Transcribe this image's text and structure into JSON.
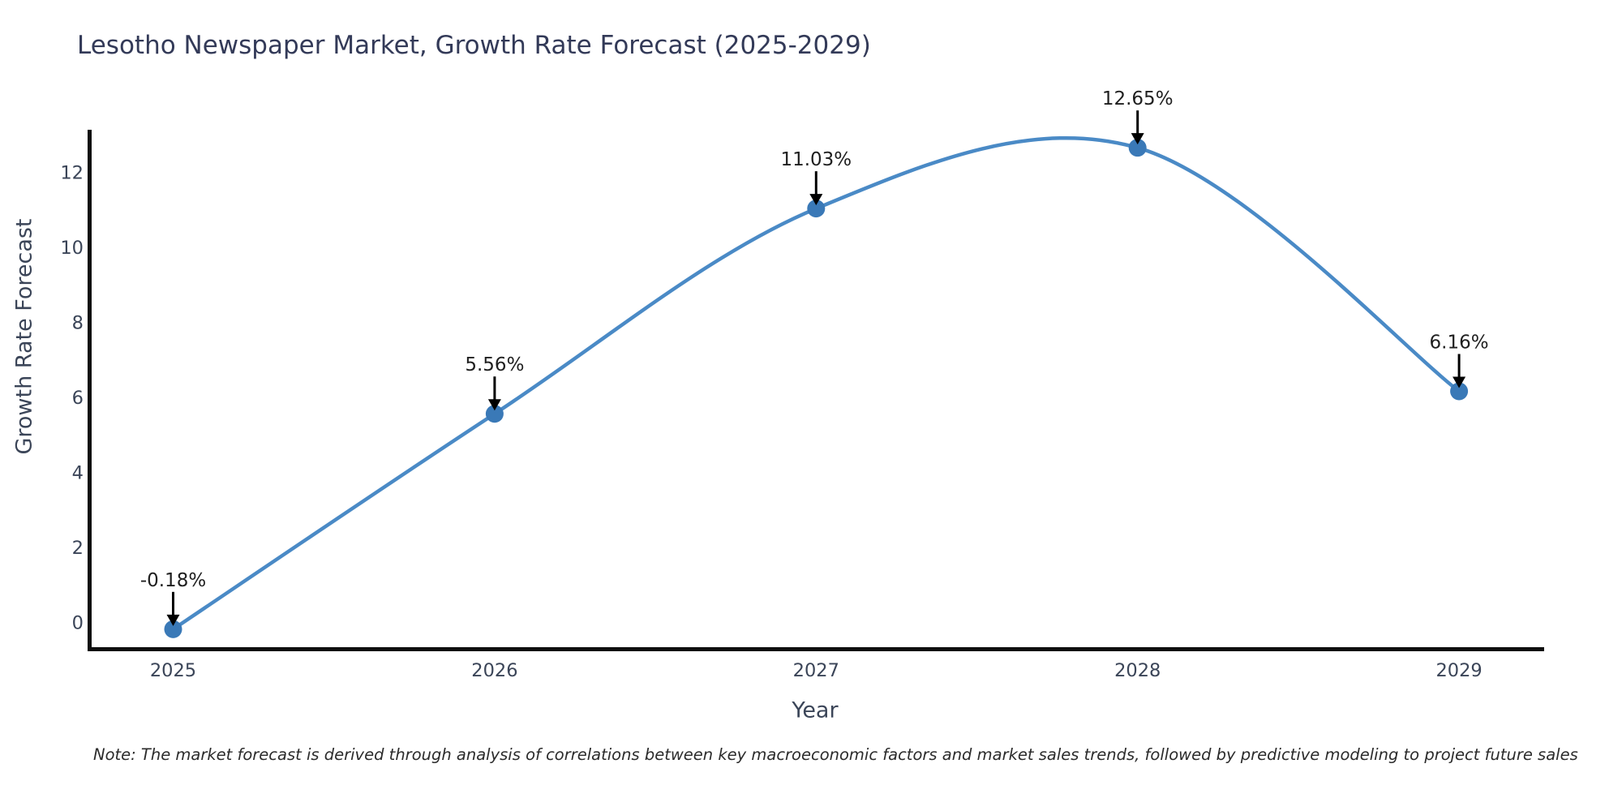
{
  "chart_data": {
    "type": "line",
    "title": "Lesotho Newspaper Market, Growth Rate Forecast (2025-2029)",
    "xlabel": "Year",
    "ylabel": "Growth Rate Forecast",
    "categories": [
      "2025",
      "2026",
      "2027",
      "2028",
      "2029"
    ],
    "values": [
      -0.18,
      5.56,
      11.03,
      12.65,
      6.16
    ],
    "point_labels": [
      "-0.18%",
      "5.56%",
      "11.03%",
      "12.65%",
      "6.16%"
    ],
    "yticks": [
      0,
      2,
      4,
      6,
      8,
      10,
      12
    ],
    "ylim": [
      -0.75,
      13.4
    ],
    "xlim_categories": [
      "2025",
      "2029"
    ],
    "grid": false,
    "legend": "none",
    "marker": "circle",
    "annotation_style": "value label with downward black arrow to each point",
    "colors": {
      "line": "#4a8ac6",
      "marker": "#3a79b7",
      "arrow": "#000000",
      "annotation_text": "#1f1f1f",
      "axis_spine": "#0e0e0e",
      "tick_label": "#3b4558",
      "title": "#333a58"
    }
  },
  "footnote": "Note: The market forecast is derived through analysis of correlations between key macroeconomic factors and market sales trends, followed by predictive modeling to project future sales"
}
